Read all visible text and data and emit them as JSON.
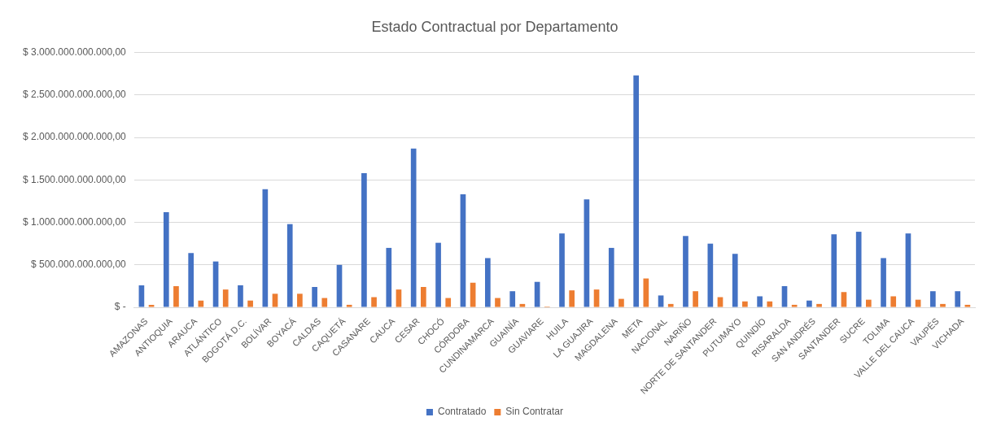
{
  "chart_data": {
    "type": "bar",
    "title": "Estado Contractual por Departamento",
    "categories": [
      "AMAZONAS",
      "ANTIOQUIA",
      "ARAUCA",
      "ATLÁNTICO",
      "BOGOTÁ D.C.",
      "BOLÍVAR",
      "BOYACÁ",
      "CALDAS",
      "CAQUETÁ",
      "CASANARE",
      "CAUCA",
      "CESAR",
      "CHOCÓ",
      "CÓRDOBA",
      "CUNDINAMARCA",
      "GUAINÍA",
      "GUAVIARE",
      "HUILA",
      "LA GUAJIRA",
      "MAGDALENA",
      "META",
      "NACIONAL",
      "NARIÑO",
      "NORTE DE SANTANDER",
      "PUTUMAYO",
      "QUINDÍO",
      "RISARALDA",
      "SAN ANDRÉS",
      "SANTANDER",
      "SUCRE",
      "TOLIMA",
      "VALLE DEL CAUCA",
      "VAUPÉS",
      "VICHADA"
    ],
    "series": [
      {
        "name": "Contratado",
        "color": "#4472c4",
        "values": [
          260000000000,
          1120000000000,
          640000000000,
          540000000000,
          260000000000,
          1390000000000,
          980000000000,
          240000000000,
          500000000000,
          1580000000000,
          700000000000,
          1870000000000,
          760000000000,
          1330000000000,
          580000000000,
          190000000000,
          300000000000,
          870000000000,
          1270000000000,
          700000000000,
          2730000000000,
          140000000000,
          840000000000,
          750000000000,
          630000000000,
          130000000000,
          250000000000,
          80000000000,
          860000000000,
          890000000000,
          580000000000,
          870000000000,
          190000000000,
          190000000000
        ]
      },
      {
        "name": "Sin Contratar",
        "color": "#ed7d31",
        "values": [
          30000000000,
          250000000000,
          80000000000,
          210000000000,
          80000000000,
          160000000000,
          160000000000,
          110000000000,
          30000000000,
          120000000000,
          210000000000,
          240000000000,
          110000000000,
          290000000000,
          110000000000,
          40000000000,
          10000000000,
          200000000000,
          210000000000,
          100000000000,
          340000000000,
          40000000000,
          190000000000,
          120000000000,
          70000000000,
          70000000000,
          30000000000,
          40000000000,
          180000000000,
          90000000000,
          130000000000,
          90000000000,
          40000000000,
          30000000000
        ]
      }
    ],
    "ylim": [
      0,
      3000000000000
    ],
    "yticks": [
      {
        "value": 0,
        "label": "$ -"
      },
      {
        "value": 500000000000,
        "label": "$ 500.000.000.000,00"
      },
      {
        "value": 1000000000000,
        "label": "$ 1.000.000.000.000,00"
      },
      {
        "value": 1500000000000,
        "label": "$ 1.500.000.000.000,00"
      },
      {
        "value": 2000000000000,
        "label": "$ 2.000.000.000.000,00"
      },
      {
        "value": 2500000000000,
        "label": "$ 2.500.000.000.000,00"
      },
      {
        "value": 3000000000000,
        "label": "$ 3.000.000.000.000,00"
      }
    ],
    "grid": "y",
    "legend": "bottom"
  }
}
